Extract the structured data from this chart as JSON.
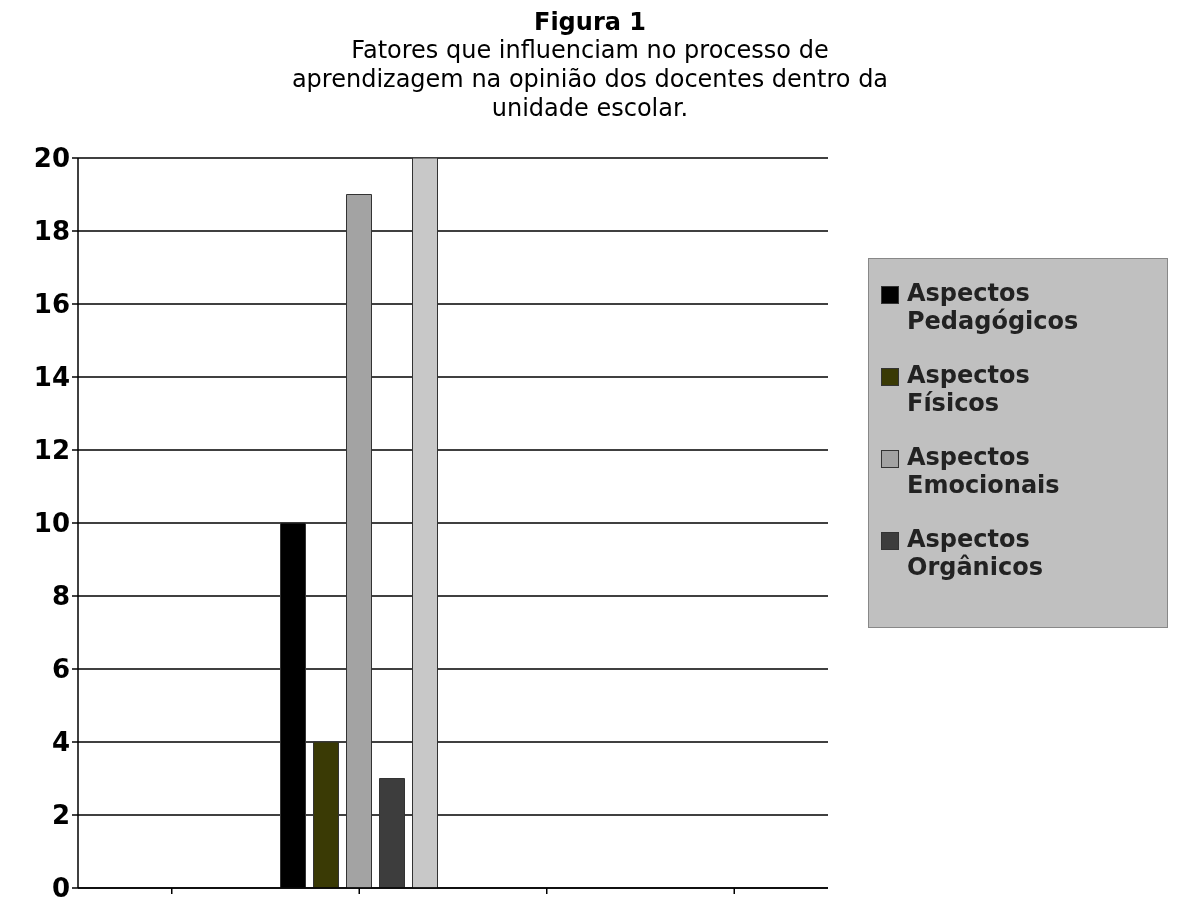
{
  "chart_data": {
    "type": "bar",
    "title": "Figura 1",
    "subtitle": "Fatores que influenciam no processo de aprendizagem na opinião dos docentes dentro da unidade escolar.",
    "categories": [
      null,
      null,
      null,
      null
    ],
    "series": [
      {
        "name": "Aspectos Pedagógicos",
        "color": "#000000",
        "values": [
          null,
          10,
          null,
          null
        ]
      },
      {
        "name": "Aspectos Físicos",
        "color": "#3a3a05",
        "values": [
          null,
          4,
          null,
          null
        ]
      },
      {
        "name": "Aspectos Emocionais",
        "color": "#a3a3a3",
        "values": [
          null,
          19,
          null,
          null
        ]
      },
      {
        "name": "Aspectos Orgânicos",
        "color": "#3d3d3d",
        "values": [
          null,
          3,
          null,
          null
        ]
      },
      {
        "color": "#c8c8c8",
        "values": [
          null,
          20,
          null,
          null
        ]
      }
    ],
    "ylim": [
      0,
      20
    ],
    "yticks": [
      0,
      2,
      4,
      6,
      8,
      10,
      12,
      14,
      16,
      18,
      20
    ],
    "grid": "y",
    "legend": "right"
  }
}
